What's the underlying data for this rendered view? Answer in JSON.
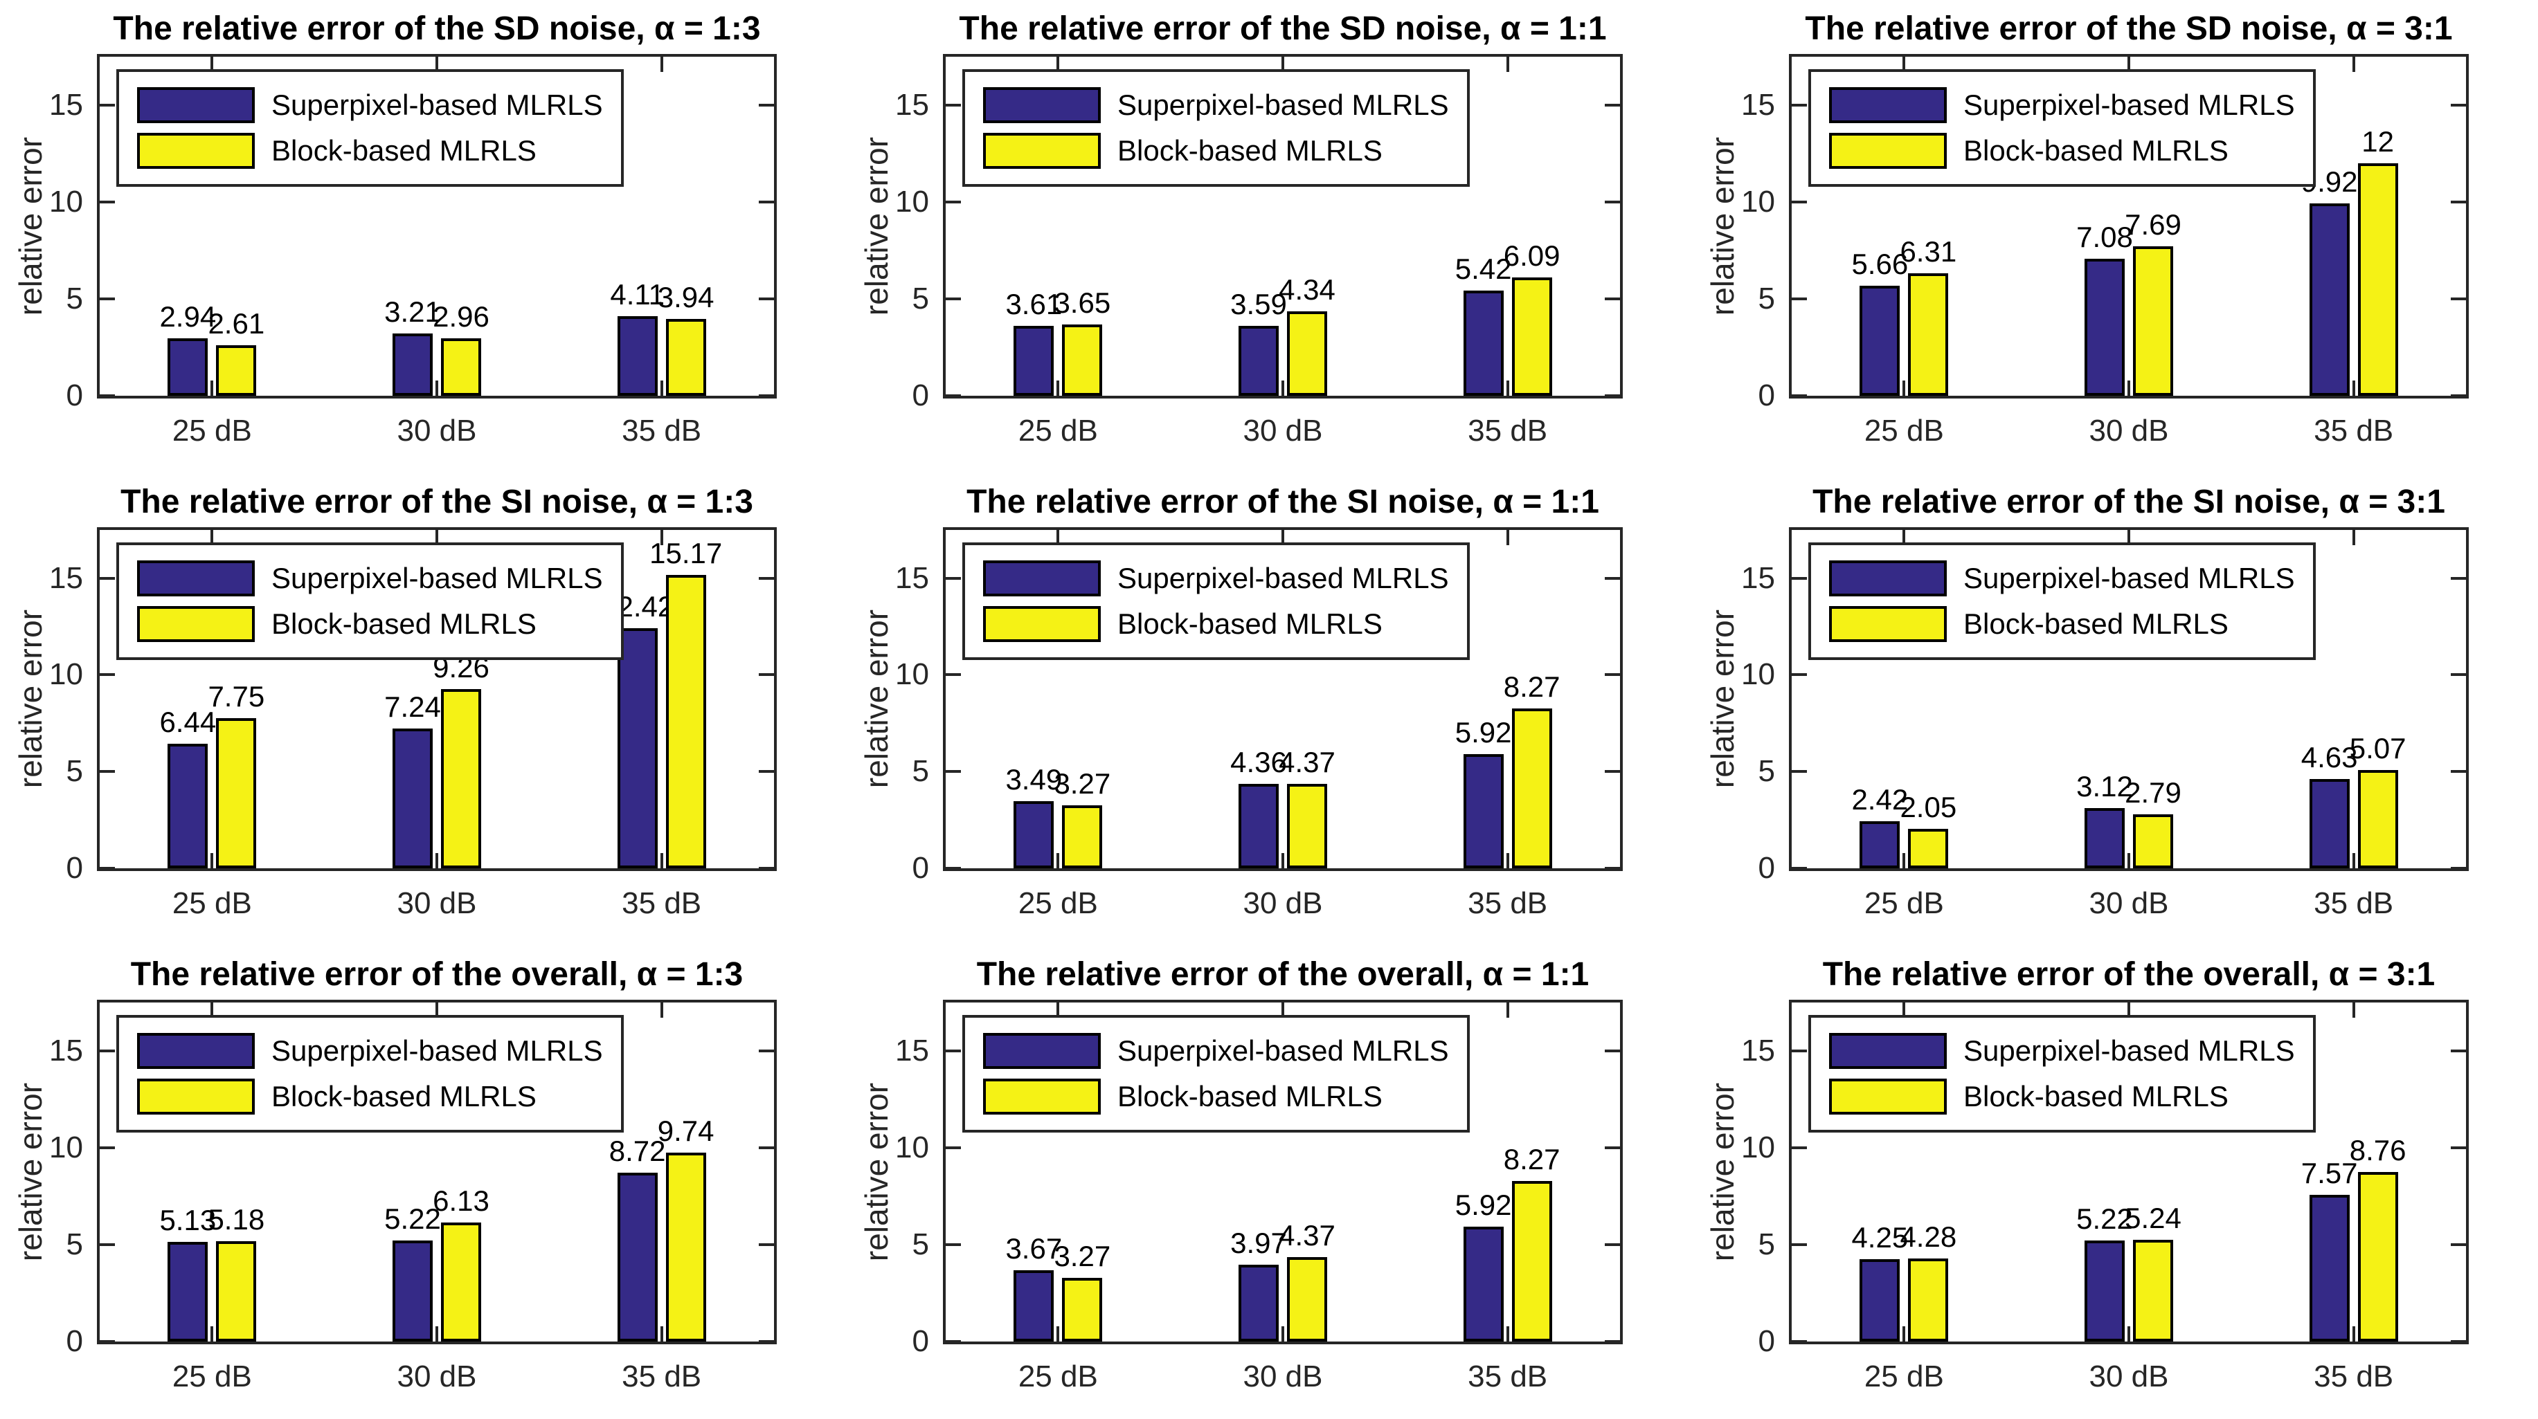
{
  "figure": {
    "background": "#FFFFFF",
    "ylabel": "relative error",
    "categories": [
      "25 dB",
      "30 dB",
      "35 dB"
    ],
    "legend_entries": [
      "Superpixel-based MLRLS",
      "Block-based MLRLS"
    ],
    "colors": {
      "superpixel_bar": "#352A87",
      "block_bar": "#F5F215",
      "bar_edge": "#000000",
      "axis": "#262626",
      "text": "#000000"
    }
  },
  "chart_data": [
    {
      "type": "bar",
      "title": "The relative error of the SD noise, α = 1:3",
      "categories": [
        "25 dB",
        "30 dB",
        "35 dB"
      ],
      "series": [
        {
          "name": "Superpixel-based MLRLS",
          "values": [
            2.94,
            3.21,
            4.11
          ]
        },
        {
          "name": "Block-based MLRLS",
          "values": [
            2.61,
            2.96,
            3.94
          ]
        }
      ],
      "xlabel": "",
      "ylabel": "relative error",
      "yticks": [
        0,
        5,
        10,
        15
      ],
      "ylim": [
        0,
        17.5
      ],
      "legend_position": "upper-left",
      "grid": false
    },
    {
      "type": "bar",
      "title": "The relative error of the SD noise, α = 1:1",
      "categories": [
        "25 dB",
        "30 dB",
        "35 dB"
      ],
      "series": [
        {
          "name": "Superpixel-based MLRLS",
          "values": [
            3.61,
            3.59,
            5.42
          ]
        },
        {
          "name": "Block-based MLRLS",
          "values": [
            3.65,
            4.34,
            6.09
          ]
        }
      ],
      "xlabel": "",
      "ylabel": "relative error",
      "yticks": [
        0,
        5,
        10,
        15
      ],
      "ylim": [
        0,
        17.5
      ],
      "legend_position": "upper-left",
      "grid": false
    },
    {
      "type": "bar",
      "title": "The relative error of the SD noise, α = 3:1",
      "categories": [
        "25 dB",
        "30 dB",
        "35 dB"
      ],
      "series": [
        {
          "name": "Superpixel-based MLRLS",
          "values": [
            5.66,
            7.08,
            9.92
          ]
        },
        {
          "name": "Block-based MLRLS",
          "values": [
            6.31,
            7.69,
            12
          ]
        }
      ],
      "xlabel": "",
      "ylabel": "relative error",
      "yticks": [
        0,
        5,
        10,
        15
      ],
      "ylim": [
        0,
        17.5
      ],
      "legend_position": "upper-left",
      "grid": false
    },
    {
      "type": "bar",
      "title": "The relative error of the SI noise, α = 1:3",
      "categories": [
        "25 dB",
        "30 dB",
        "35 dB"
      ],
      "series": [
        {
          "name": "Superpixel-based MLRLS",
          "values": [
            6.44,
            7.24,
            12.42
          ]
        },
        {
          "name": "Block-based MLRLS",
          "values": [
            7.75,
            9.26,
            15.17
          ]
        }
      ],
      "xlabel": "",
      "ylabel": "relative error",
      "yticks": [
        0,
        5,
        10,
        15
      ],
      "ylim": [
        0,
        17.5
      ],
      "legend_position": "upper-left",
      "grid": false
    },
    {
      "type": "bar",
      "title": "The relative error of the SI noise, α = 1:1",
      "categories": [
        "25 dB",
        "30 dB",
        "35 dB"
      ],
      "series": [
        {
          "name": "Superpixel-based MLRLS",
          "values": [
            3.49,
            4.36,
            5.92
          ]
        },
        {
          "name": "Block-based MLRLS",
          "values": [
            3.27,
            4.37,
            8.27
          ]
        }
      ],
      "xlabel": "",
      "ylabel": "relative error",
      "yticks": [
        0,
        5,
        10,
        15
      ],
      "ylim": [
        0,
        17.5
      ],
      "legend_position": "upper-left",
      "grid": false
    },
    {
      "type": "bar",
      "title": "The relative error of the SI noise, α = 3:1",
      "categories": [
        "25 dB",
        "30 dB",
        "35 dB"
      ],
      "series": [
        {
          "name": "Superpixel-based MLRLS",
          "values": [
            2.42,
            3.12,
            4.63
          ]
        },
        {
          "name": "Block-based MLRLS",
          "values": [
            2.05,
            2.79,
            5.07
          ]
        }
      ],
      "xlabel": "",
      "ylabel": "relative error",
      "yticks": [
        0,
        5,
        10,
        15
      ],
      "ylim": [
        0,
        17.5
      ],
      "legend_position": "upper-left",
      "grid": false
    },
    {
      "type": "bar",
      "title": "The relative error of the overall, α = 1:3",
      "categories": [
        "25 dB",
        "30 dB",
        "35 dB"
      ],
      "series": [
        {
          "name": "Superpixel-based MLRLS",
          "values": [
            5.13,
            5.22,
            8.72
          ]
        },
        {
          "name": "Block-based MLRLS",
          "values": [
            5.18,
            6.13,
            9.74
          ]
        }
      ],
      "xlabel": "",
      "ylabel": "relative error",
      "yticks": [
        0,
        5,
        10,
        15
      ],
      "ylim": [
        0,
        17.5
      ],
      "legend_position": "upper-left",
      "grid": false
    },
    {
      "type": "bar",
      "title": "The relative error of the overall, α = 1:1",
      "categories": [
        "25 dB",
        "30 dB",
        "35 dB"
      ],
      "series": [
        {
          "name": "Superpixel-based MLRLS",
          "values": [
            3.67,
            3.97,
            5.92
          ]
        },
        {
          "name": "Block-based MLRLS",
          "values": [
            3.27,
            4.37,
            8.27
          ]
        }
      ],
      "xlabel": "",
      "ylabel": "relative error",
      "yticks": [
        0,
        5,
        10,
        15
      ],
      "ylim": [
        0,
        17.5
      ],
      "legend_position": "upper-left",
      "grid": false
    },
    {
      "type": "bar",
      "title": "The relative error of the overall, α = 3:1",
      "categories": [
        "25 dB",
        "30 dB",
        "35 dB"
      ],
      "series": [
        {
          "name": "Superpixel-based MLRLS",
          "values": [
            4.25,
            5.22,
            7.57
          ]
        },
        {
          "name": "Block-based MLRLS",
          "values": [
            4.28,
            5.24,
            8.76
          ]
        }
      ],
      "xlabel": "",
      "ylabel": "relative error",
      "yticks": [
        0,
        5,
        10,
        15
      ],
      "ylim": [
        0,
        17.5
      ],
      "legend_position": "upper-left",
      "grid": false
    }
  ]
}
